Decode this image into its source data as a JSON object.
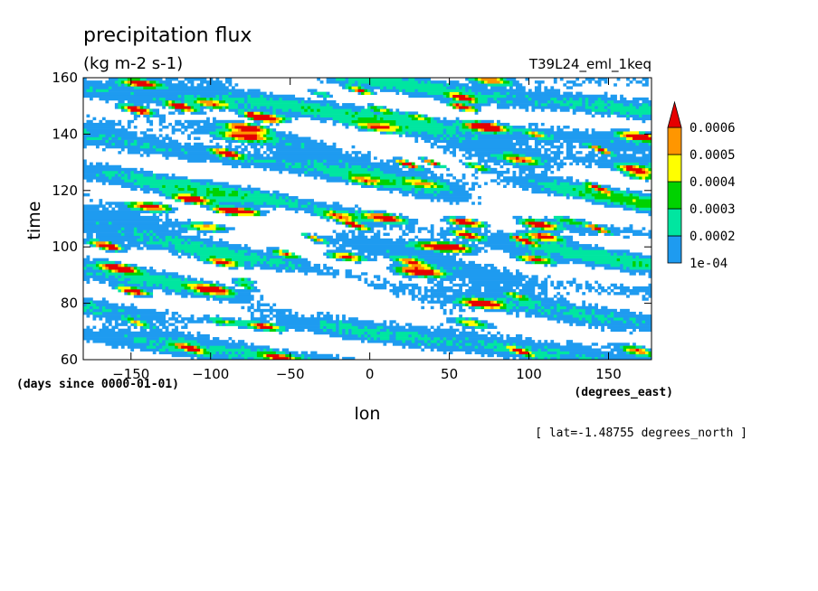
{
  "chart_data": {
    "type": "heatmap",
    "title": "precipitation flux",
    "units": "(kg m-2 s-1)",
    "run_label": "T39L24_eml_1keq",
    "xlabel": "lon",
    "x_units": "(degrees_east)",
    "ylabel": "time",
    "y_units": "(days since 0000-01-01)",
    "footnote": "[ lat=-1.48755 degrees_north ]",
    "xlim": [
      -180,
      177
    ],
    "ylim": [
      60,
      160
    ],
    "x_ticks": [
      -150,
      -100,
      -50,
      0,
      50,
      100,
      150
    ],
    "y_ticks": [
      60,
      80,
      100,
      120,
      140,
      160
    ],
    "x_tick_labels": [
      "−150",
      "−100",
      "−50",
      "0",
      "50",
      "100",
      "150"
    ],
    "y_tick_labels": [
      "60",
      "80",
      "100",
      "120",
      "140",
      "160"
    ],
    "grid": false,
    "colorbar": {
      "position": "right",
      "levels": [
        0.0001,
        0.0002,
        0.0003,
        0.0004,
        0.0005,
        0.0006
      ],
      "level_labels": [
        "1e-04",
        "0.0002",
        "0.0003",
        "0.0004",
        "0.0005",
        "0.0006"
      ],
      "colors": [
        "#ffffff",
        "#1e9bf0",
        "#00e6a0",
        "#00d200",
        "#ffff00",
        "#ff9600",
        "#e60000"
      ],
      "extend": "max"
    },
    "pattern": "westward-propagating precipitation streaks; values mostly 1e-04 to 0.0003 with scattered maxima above 0.0006"
  }
}
